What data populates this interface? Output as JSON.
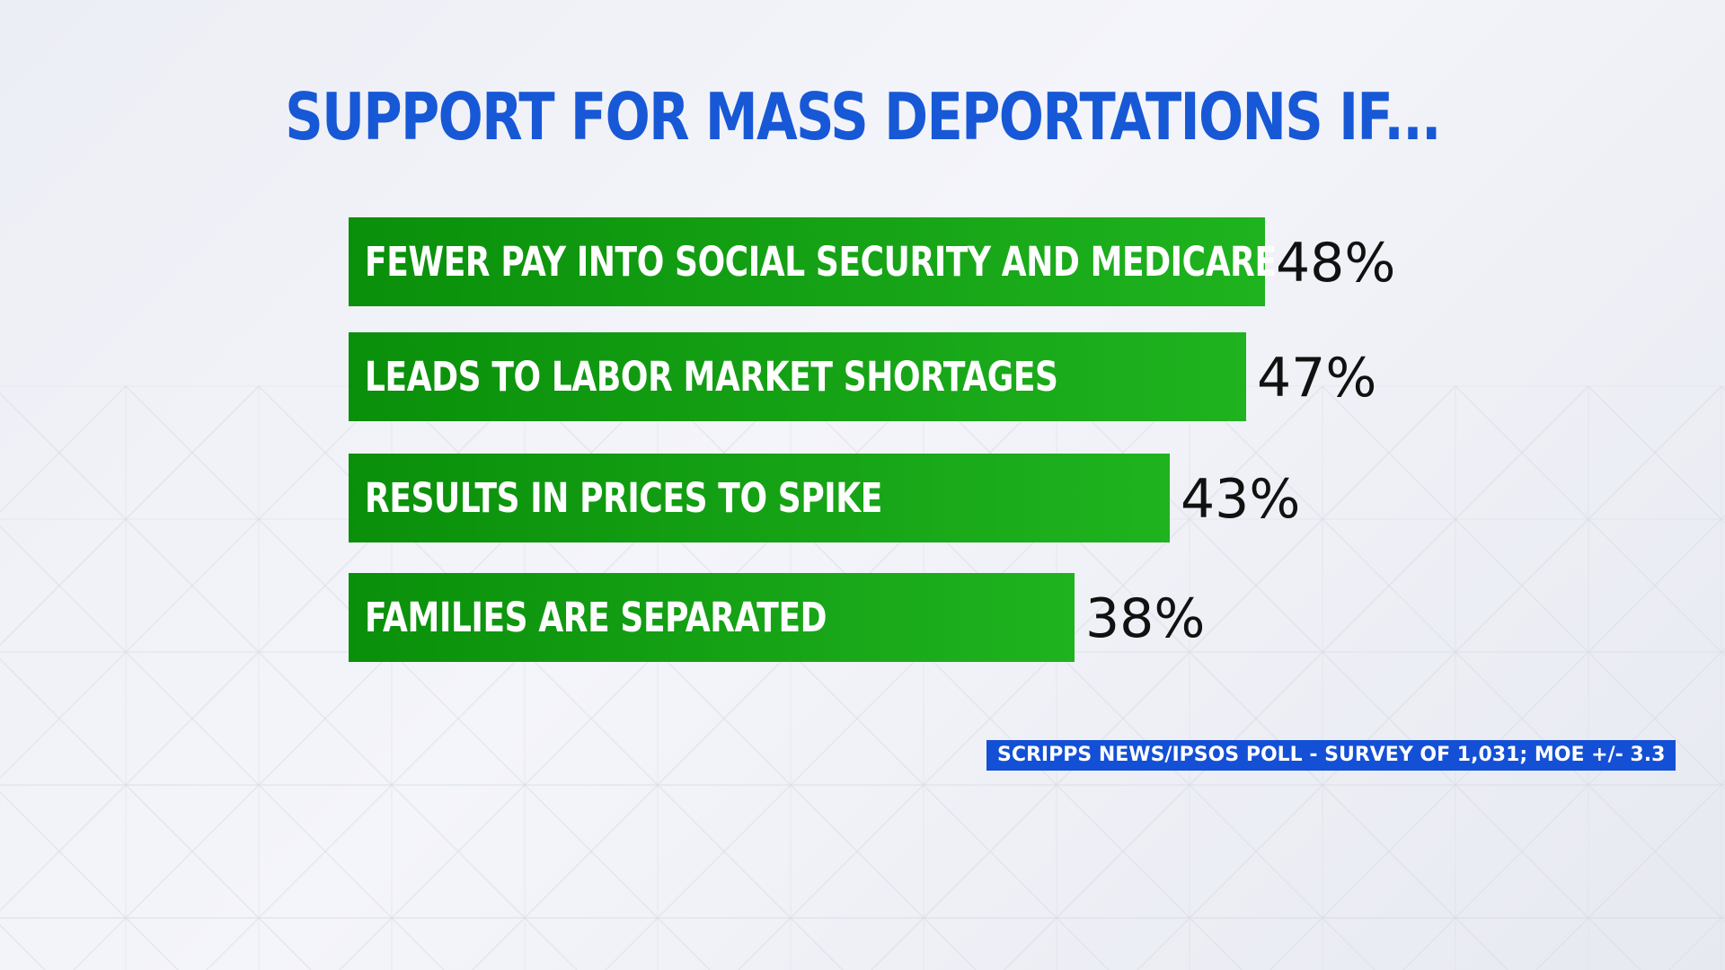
{
  "chart_data": {
    "type": "bar",
    "orientation": "horizontal",
    "title": "SUPPORT FOR MASS DEPORTATIONS IF...",
    "categories": [
      "FEWER PAY INTO SOCIAL SECURITY AND MEDICARE",
      "LEADS TO LABOR MARKET SHORTAGES",
      "RESULTS IN PRICES TO SPIKE",
      "FAMILIES ARE SEPARATED"
    ],
    "values": [
      48,
      47,
      43,
      38
    ],
    "value_labels": [
      "48%",
      "47%",
      "43%",
      "38%"
    ],
    "unit": "%",
    "xlim": [
      0,
      50
    ],
    "grid": false,
    "legend": "none"
  },
  "source_note": "SCRIPPS NEWS/IPSOS POLL - SURVEY OF 1,031; MOE +/- 3.3",
  "colors": {
    "title": "#1758d6",
    "bar_light": "#1fb31f",
    "bar_dark": "#0a8f0a",
    "value_text": "#111111",
    "source_bg": "#1450d6",
    "source_text": "#ffffff"
  }
}
